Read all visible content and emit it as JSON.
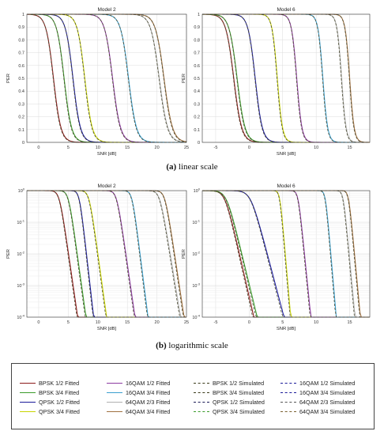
{
  "charts": [
    {
      "panel": "a-left",
      "title": "Model 2",
      "xlabel": "SNR [dB]",
      "ylabel": "PER",
      "scale": "linear"
    },
    {
      "panel": "a-right",
      "title": "Model 6",
      "xlabel": "SNR [dB]",
      "ylabel": "PER",
      "scale": "linear"
    },
    {
      "panel": "b-left",
      "title": "Model 2",
      "xlabel": "SNR [dB]",
      "ylabel": "PER",
      "scale": "log"
    },
    {
      "panel": "b-right",
      "title": "Model 6",
      "xlabel": "SNR [dB]",
      "ylabel": "PER",
      "scale": "log"
    }
  ],
  "captions": {
    "a_label": "(a)",
    "a_text": " linear scale",
    "b_label": "(b)",
    "b_text": " logarithmic scale"
  },
  "legend": [
    {
      "label": "BPSK 1/2 Fitted",
      "color": "#8b1a1a",
      "dash": false
    },
    {
      "label": "BPSK 3/4 Fitted",
      "color": "#3a9b2a",
      "dash": false
    },
    {
      "label": "QPSK 1/2 Fitted",
      "color": "#1a1a99",
      "dash": false
    },
    {
      "label": "QPSK 3/4 Fitted",
      "color": "#c8d400",
      "dash": false
    },
    {
      "label": "16QAM 1/2 Fitted",
      "color": "#8c3aa0",
      "dash": false
    },
    {
      "label": "16QAM 3/4 Fitted",
      "color": "#3a9fcf",
      "dash": false
    },
    {
      "label": "64QAM 2/3 Fitted",
      "color": "#b0b0b0",
      "dash": false
    },
    {
      "label": "64QAM 3/4 Fitted",
      "color": "#a07040",
      "dash": false
    },
    {
      "label": "BPSK 1/2 Simulated",
      "color": "#3a3a1a",
      "dash": true
    },
    {
      "label": "BPSK 3/4 Simulated",
      "color": "#3a3a1a",
      "dash": true
    },
    {
      "label": "QPSK 1/2 Simulated",
      "color": "#1a1a55",
      "dash": true
    },
    {
      "label": "QPSK 3/4 Simulated",
      "color": "#3a9b2a",
      "dash": true
    },
    {
      "label": "16QAM 1/2 Simulated",
      "color": "#1a1a99",
      "dash": true
    },
    {
      "label": "16QAM 3/4 Simulated",
      "color": "#1a1a99",
      "dash": true
    },
    {
      "label": "64QAM 2/3 Simulated",
      "color": "#555555",
      "dash": true
    },
    {
      "label": "64QAM 3/4 Simulated",
      "color": "#7a6030",
      "dash": true
    }
  ],
  "chart_data": [
    {
      "type": "line",
      "title": "Model 2",
      "xlabel": "SNR [dB]",
      "ylabel": "PER",
      "yscale": "linear",
      "xlim": [
        -2,
        25
      ],
      "ylim": [
        0,
        1
      ],
      "xticks": [
        "0",
        "5",
        "10",
        "15",
        "20",
        "25"
      ],
      "yticks": [
        "0",
        "0.1",
        "0.2",
        "0.3",
        "0.4",
        "0.5",
        "0.6",
        "0.7",
        "0.8",
        "0.9",
        "1"
      ],
      "grid": true,
      "series": [
        {
          "name": "BPSK 1/2",
          "color": "#8b1a1a",
          "midpoint_snr": 2.5,
          "slope": 1.6
        },
        {
          "name": "BPSK 3/4",
          "color": "#3a9b2a",
          "midpoint_snr": 4.3,
          "slope": 1.6
        },
        {
          "name": "QPSK 1/2",
          "color": "#1a1a99",
          "midpoint_snr": 5.8,
          "slope": 1.6
        },
        {
          "name": "QPSK 3/4",
          "color": "#c8d400",
          "midpoint_snr": 7.8,
          "slope": 1.6
        },
        {
          "name": "16QAM 1/2",
          "color": "#8c3aa0",
          "midpoint_snr": 12.5,
          "slope": 1.5
        },
        {
          "name": "16QAM 3/4",
          "color": "#3a9fcf",
          "midpoint_snr": 15.2,
          "slope": 1.5
        },
        {
          "name": "64QAM 2/3",
          "color": "#b0b0b0",
          "midpoint_snr": 20.4,
          "slope": 1.4
        },
        {
          "name": "64QAM 3/4",
          "color": "#a07040",
          "midpoint_snr": 21.2,
          "slope": 1.4
        }
      ]
    },
    {
      "type": "line",
      "title": "Model 6",
      "xlabel": "SNR [dB]",
      "ylabel": "PER",
      "yscale": "linear",
      "xlim": [
        -7,
        18
      ],
      "ylim": [
        0,
        1
      ],
      "xticks": [
        "-5",
        "0",
        "5",
        "10",
        "15"
      ],
      "yticks": [
        "0",
        "0.1",
        "0.2",
        "0.3",
        "0.4",
        "0.5",
        "0.6",
        "0.7",
        "0.8",
        "0.9",
        "1"
      ],
      "grid": true,
      "series": [
        {
          "name": "BPSK 1/2",
          "color": "#8b1a1a",
          "midpoint_snr": -2.3,
          "slope": 1.7
        },
        {
          "name": "BPSK 3/4",
          "color": "#3a9b2a",
          "midpoint_snr": -1.8,
          "slope": 1.7
        },
        {
          "name": "QPSK 1/2",
          "color": "#1a1a99",
          "midpoint_snr": 0.9,
          "slope": 1.9
        },
        {
          "name": "QPSK 3/4",
          "color": "#c8d400",
          "midpoint_snr": 4.2,
          "slope": 2.6
        },
        {
          "name": "16QAM 1/2",
          "color": "#8c3aa0",
          "midpoint_snr": 7.1,
          "slope": 2.6
        },
        {
          "name": "16QAM 3/4",
          "color": "#3a9fcf",
          "midpoint_snr": 11.0,
          "slope": 2.8
        },
        {
          "name": "64QAM 2/3",
          "color": "#b0b0b0",
          "midpoint_snr": 13.8,
          "slope": 3.0
        },
        {
          "name": "64QAM 3/4",
          "color": "#a07040",
          "midpoint_snr": 15.0,
          "slope": 3.0
        }
      ]
    },
    {
      "type": "line",
      "title": "Model 2",
      "xlabel": "SNR [dB]",
      "ylabel": "PER",
      "yscale": "log",
      "xlim": [
        -2,
        25
      ],
      "ylim": [
        0.0001,
        1
      ],
      "xticks": [
        "0",
        "5",
        "10",
        "15",
        "20",
        "25"
      ],
      "yticks": [
        "10^0",
        "10^-1",
        "10^-2",
        "10^-3",
        "10^-4"
      ],
      "grid": true,
      "series": [
        {
          "name": "BPSK 1/2",
          "color": "#8b1a1a",
          "snr_at_1e-1": 4.3,
          "snr_at_1e-4": 6.6
        },
        {
          "name": "BPSK 3/4",
          "color": "#3a9b2a",
          "snr_at_1e-1": 5.8,
          "snr_at_1e-4": 8.0
        },
        {
          "name": "QPSK 1/2",
          "color": "#1a1a99",
          "snr_at_1e-1": 7.5,
          "snr_at_1e-4": 9.3
        },
        {
          "name": "QPSK 3/4",
          "color": "#c8d400",
          "snr_at_1e-1": 9.3,
          "snr_at_1e-4": 11.5
        },
        {
          "name": "16QAM 1/2",
          "color": "#8c3aa0",
          "snr_at_1e-1": 14.0,
          "snr_at_1e-4": 16.3
        },
        {
          "name": "16QAM 3/4",
          "color": "#3a9fcf",
          "snr_at_1e-1": 16.5,
          "snr_at_1e-4": 18.5
        },
        {
          "name": "64QAM 2/3",
          "color": "#b0b0b0",
          "snr_at_1e-1": 21.4,
          "snr_at_1e-4": 24.0
        },
        {
          "name": "64QAM 3/4",
          "color": "#a07040",
          "snr_at_1e-1": 22.2,
          "snr_at_1e-4": 24.6
        }
      ]
    },
    {
      "type": "line",
      "title": "Model 6",
      "xlabel": "SNR [dB]",
      "ylabel": "PER",
      "yscale": "log",
      "xlim": [
        -7,
        18
      ],
      "ylim": [
        0.0001,
        1
      ],
      "xticks": [
        "-5",
        "0",
        "5",
        "10",
        "15"
      ],
      "yticks": [
        "10^0",
        "10^-1",
        "10^-2",
        "10^-3",
        "10^-4"
      ],
      "grid": true,
      "series": [
        {
          "name": "BPSK 1/2",
          "color": "#8b1a1a",
          "snr_at_1e-1": -2.5,
          "snr_at_1e-4": 0.7
        },
        {
          "name": "BPSK 3/4",
          "color": "#3a9b2a",
          "snr_at_1e-1": -2.2,
          "snr_at_1e-4": 1.2
        },
        {
          "name": "QPSK 1/2",
          "color": "#1a1a99",
          "snr_at_1e-1": 1.5,
          "snr_at_1e-4": 5.2
        },
        {
          "name": "QPSK 3/4",
          "color": "#c8d400",
          "snr_at_1e-1": 5.0,
          "snr_at_1e-4": 6.2
        },
        {
          "name": "16QAM 1/2",
          "color": "#8c3aa0",
          "snr_at_1e-1": 7.8,
          "snr_at_1e-4": 9.2
        },
        {
          "name": "16QAM 3/4",
          "color": "#3a9fcf",
          "snr_at_1e-1": 11.8,
          "snr_at_1e-4": 13.0
        },
        {
          "name": "64QAM 2/3",
          "color": "#b0b0b0",
          "snr_at_1e-1": 14.5,
          "snr_at_1e-4": 15.8
        },
        {
          "name": "64QAM 3/4",
          "color": "#a07040",
          "snr_at_1e-1": 15.3,
          "snr_at_1e-4": 16.6
        }
      ]
    }
  ]
}
